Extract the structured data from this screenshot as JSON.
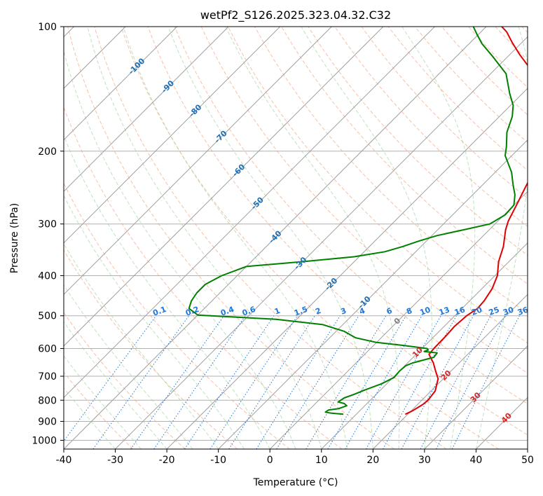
{
  "chart_data": {
    "type": "line",
    "subtype": "skew-t log-p",
    "title": "wetPf2_S126.2025.323.04.32.C32",
    "xlabel": "Temperature (°C)",
    "ylabel": "Pressure (hPa)",
    "xlim": [
      -40,
      50
    ],
    "ylim": [
      1050,
      100
    ],
    "y_scale": "log",
    "grid": true,
    "x_ticks": [
      -40,
      -30,
      -20,
      -10,
      0,
      10,
      20,
      30,
      40,
      50
    ],
    "y_ticks": [
      1000,
      900,
      800,
      700,
      600,
      500,
      400,
      300,
      200,
      100
    ],
    "isotherm_labels": [
      "-100",
      "-90",
      "-80",
      "-70",
      "-60",
      "-50",
      "-40",
      "-30",
      "-20",
      "-10",
      "0",
      "10",
      "20",
      "30",
      "40"
    ],
    "mixing_ratio_labels": [
      "0.1",
      "0.2",
      "0.4",
      "0.6",
      "1",
      "1.5",
      "2",
      "3",
      "4",
      "6",
      "8",
      "10",
      "13",
      "16",
      "20",
      "25",
      "30",
      "36"
    ],
    "series": [
      {
        "color": "#e00000",
        "points": [
          [
            19.5,
            865
          ],
          [
            20.2,
            850
          ],
          [
            21.0,
            820
          ],
          [
            21.2,
            800
          ],
          [
            20.8,
            760
          ],
          [
            19.0,
            710
          ],
          [
            17.0,
            680
          ],
          [
            15.0,
            650
          ],
          [
            12.5,
            620
          ],
          [
            12.3,
            600
          ],
          [
            12.2,
            560
          ],
          [
            12.0,
            530
          ],
          [
            12.3,
            500
          ],
          [
            13.0,
            480
          ],
          [
            12.8,
            460
          ],
          [
            12.0,
            430
          ],
          [
            10.5,
            400
          ],
          [
            8.0,
            370
          ],
          [
            6.0,
            340
          ],
          [
            3.2,
            310
          ],
          [
            2.0,
            295
          ],
          [
            0.5,
            270
          ],
          [
            -1.2,
            245
          ],
          [
            -3.0,
            220
          ],
          [
            -5.0,
            200
          ],
          [
            -7.5,
            185
          ],
          [
            -11.0,
            165
          ],
          [
            -14.0,
            150
          ],
          [
            -18.0,
            138
          ],
          [
            -23.0,
            127
          ],
          [
            -28.0,
            117
          ],
          [
            -32.0,
            109
          ],
          [
            -35.0,
            103
          ],
          [
            -37.0,
            100
          ]
        ]
      },
      {
        "color": "#008000",
        "points": [
          [
            7.5,
            865
          ],
          [
            5.0,
            860
          ],
          [
            3.6,
            855
          ],
          [
            3.8,
            845
          ],
          [
            5.5,
            838
          ],
          [
            6.5,
            825
          ],
          [
            5.6,
            815
          ],
          [
            4.1,
            808
          ],
          [
            4.5,
            790
          ],
          [
            5.7,
            775
          ],
          [
            7.0,
            755
          ],
          [
            9.0,
            730
          ],
          [
            10.2,
            705
          ],
          [
            10.0,
            680
          ],
          [
            10.2,
            660
          ],
          [
            11.0,
            650
          ],
          [
            14.0,
            630
          ],
          [
            13.8,
            615
          ],
          [
            11.0,
            610
          ],
          [
            11.5,
            605
          ],
          [
            11.0,
            600
          ],
          [
            6.0,
            590
          ],
          [
            0.0,
            580
          ],
          [
            -5.0,
            565
          ],
          [
            -8.5,
            545
          ],
          [
            -14.0,
            525
          ],
          [
            -24.0,
            510
          ],
          [
            -40.0,
            498
          ],
          [
            -43.0,
            480
          ],
          [
            -44.0,
            460
          ],
          [
            -44.5,
            440
          ],
          [
            -44.5,
            420
          ],
          [
            -43.0,
            400
          ],
          [
            -40.0,
            380
          ],
          [
            -30.0,
            370
          ],
          [
            -21.0,
            360
          ],
          [
            -16.0,
            350
          ],
          [
            -13.5,
            340
          ],
          [
            -11.5,
            330
          ],
          [
            -9.0,
            320
          ],
          [
            -5.0,
            310
          ],
          [
            -1.0,
            300
          ],
          [
            0.2,
            285
          ],
          [
            0.0,
            270
          ],
          [
            -1.8,
            255
          ],
          [
            -4.3,
            240
          ],
          [
            -6.8,
            225
          ],
          [
            -9.0,
            215
          ],
          [
            -11.3,
            205
          ],
          [
            -12.8,
            195
          ],
          [
            -15.5,
            180
          ],
          [
            -17.5,
            165
          ],
          [
            -19.5,
            155
          ],
          [
            -22.5,
            145
          ],
          [
            -27.0,
            130
          ],
          [
            -33.0,
            118
          ],
          [
            -37.5,
            110
          ],
          [
            -40.5,
            104
          ],
          [
            -42.5,
            100
          ]
        ]
      }
    ]
  }
}
